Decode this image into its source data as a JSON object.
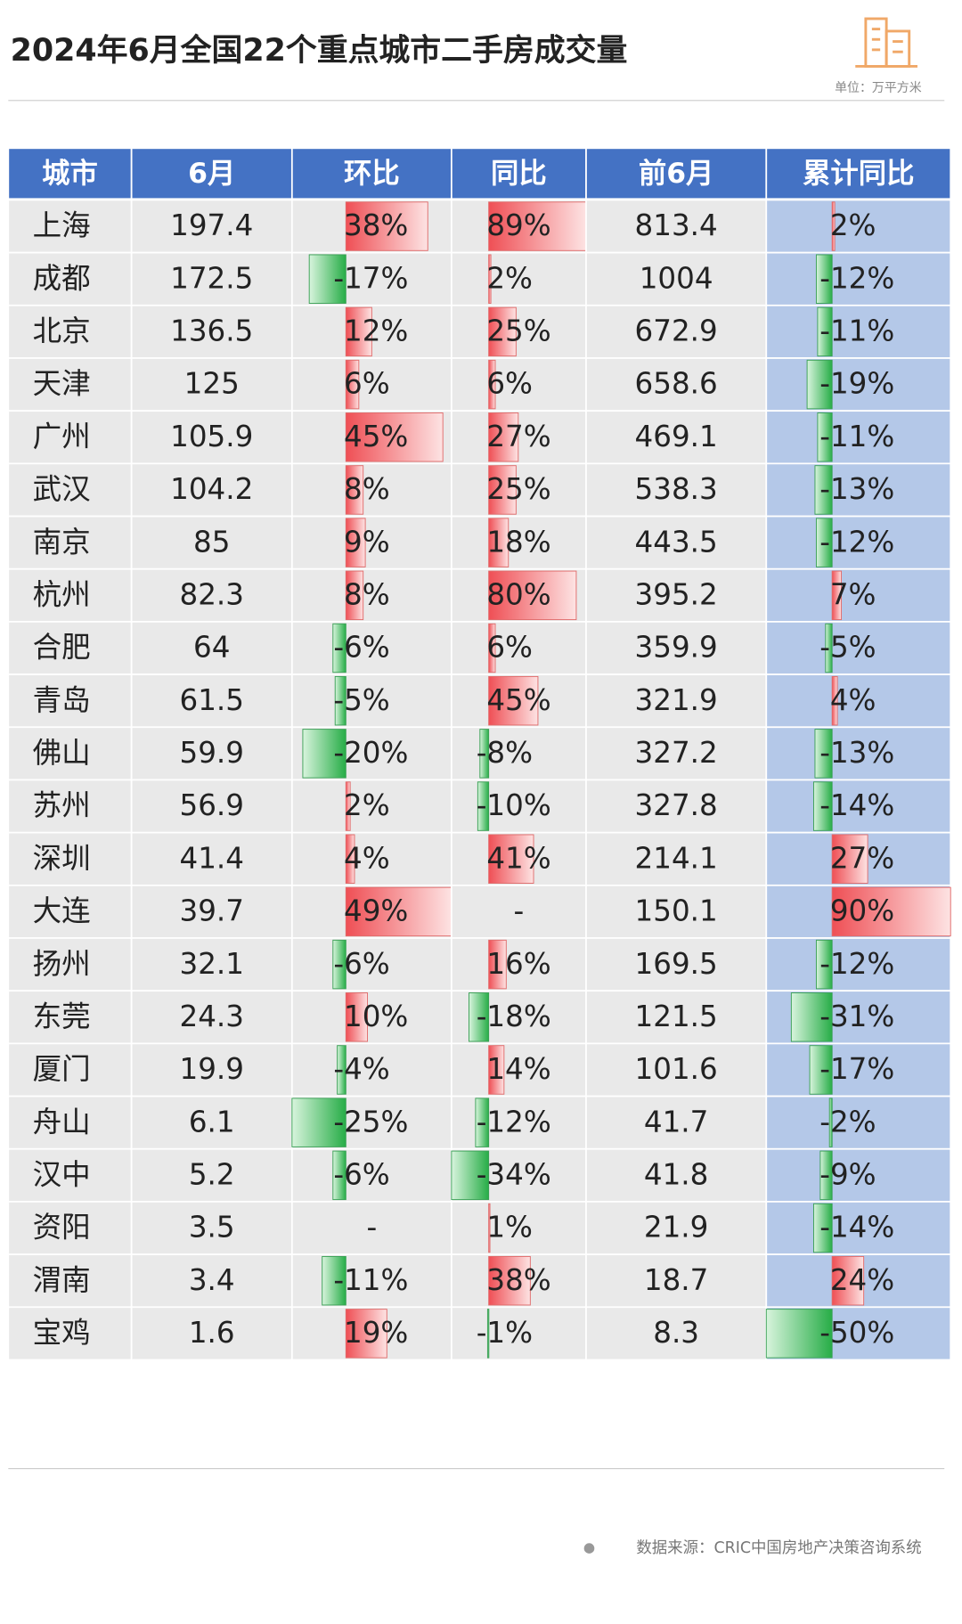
{
  "header": {
    "title": "2024年6月全国22个重点城市二手房成交量",
    "unit": "单位：万平方米"
  },
  "table": {
    "columns": [
      "城市",
      "6月",
      "环比",
      "同比",
      "前6月",
      "累计同比"
    ],
    "rows": [
      [
        "上海",
        197.4,
        {
          "value": 38,
          "label": "38%"
        },
        {
          "value": 89,
          "label": "89%"
        },
        813.4,
        {
          "value": 2,
          "label": "2%"
        }
      ],
      [
        "成都",
        172.5,
        {
          "value": -17,
          "label": "-17%"
        },
        {
          "value": 2,
          "label": "2%"
        },
        1004,
        {
          "value": -12,
          "label": "-12%"
        }
      ],
      [
        "北京",
        136.5,
        {
          "value": 12,
          "label": "12%"
        },
        {
          "value": 25,
          "label": "25%"
        },
        672.9,
        {
          "value": -11,
          "label": "-11%"
        }
      ],
      [
        "天津",
        125,
        {
          "value": 6,
          "label": "6%"
        },
        {
          "value": 6,
          "label": "6%"
        },
        658.6,
        {
          "value": -19,
          "label": "-19%"
        }
      ],
      [
        "广州",
        105.9,
        {
          "value": 45,
          "label": "45%"
        },
        {
          "value": 27,
          "label": "27%"
        },
        469.1,
        {
          "value": -11,
          "label": "-11%"
        }
      ],
      [
        "武汉",
        104.2,
        {
          "value": 8,
          "label": "8%"
        },
        {
          "value": 25,
          "label": "25%"
        },
        538.3,
        {
          "value": -13,
          "label": "-13%"
        }
      ],
      [
        "南京",
        85,
        {
          "value": 9,
          "label": "9%"
        },
        {
          "value": 18,
          "label": "18%"
        },
        443.5,
        {
          "value": -12,
          "label": "-12%"
        }
      ],
      [
        "杭州",
        82.3,
        {
          "value": 8,
          "label": "8%"
        },
        {
          "value": 80,
          "label": "80%"
        },
        395.2,
        {
          "value": 7,
          "label": "7%"
        }
      ],
      [
        "合肥",
        64,
        {
          "value": -6,
          "label": "-6%"
        },
        {
          "value": 6,
          "label": "6%"
        },
        359.9,
        {
          "value": -5,
          "label": "-5%"
        }
      ],
      [
        "青岛",
        61.5,
        {
          "value": -5,
          "label": "-5%"
        },
        {
          "value": 45,
          "label": "45%"
        },
        321.9,
        {
          "value": 4,
          "label": "4%"
        }
      ],
      [
        "佛山",
        59.9,
        {
          "value": -20,
          "label": "-20%"
        },
        {
          "value": -8,
          "label": "-8%"
        },
        327.2,
        {
          "value": -13,
          "label": "-13%"
        }
      ],
      [
        "苏州",
        56.9,
        {
          "value": 2,
          "label": "2%"
        },
        {
          "value": -10,
          "label": "-10%"
        },
        327.8,
        {
          "value": -14,
          "label": "-14%"
        }
      ],
      [
        "深圳",
        41.4,
        {
          "value": 4,
          "label": "4%"
        },
        {
          "value": 41,
          "label": "41%"
        },
        214.1,
        {
          "value": 27,
          "label": "27%"
        }
      ],
      [
        "大连",
        39.7,
        {
          "value": 49,
          "label": "49%"
        },
        {
          "value": null,
          "label": "-"
        },
        150.1,
        {
          "value": 90,
          "label": "90%"
        }
      ],
      [
        "扬州",
        32.1,
        {
          "value": -6,
          "label": "-6%"
        },
        {
          "value": 16,
          "label": "16%"
        },
        169.5,
        {
          "value": -12,
          "label": "-12%"
        }
      ],
      [
        "东莞",
        24.3,
        {
          "value": 10,
          "label": "10%"
        },
        {
          "value": -18,
          "label": "-18%"
        },
        121.5,
        {
          "value": -31,
          "label": "-31%"
        }
      ],
      [
        "厦门",
        19.9,
        {
          "value": -4,
          "label": "-4%"
        },
        {
          "value": 14,
          "label": "14%"
        },
        101.6,
        {
          "value": -17,
          "label": "-17%"
        }
      ],
      [
        "舟山",
        6.1,
        {
          "value": -25,
          "label": "-25%"
        },
        {
          "value": -12,
          "label": "-12%"
        },
        41.7,
        {
          "value": -2,
          "label": "-2%"
        }
      ],
      [
        "汉中",
        5.2,
        {
          "value": -6,
          "label": "-6%"
        },
        {
          "value": -34,
          "label": "-34%"
        },
        41.8,
        {
          "value": -9,
          "label": "-9%"
        }
      ],
      [
        "资阳",
        3.5,
        {
          "value": null,
          "label": "-"
        },
        {
          "value": 1,
          "label": "1%"
        },
        21.9,
        {
          "value": -14,
          "label": "-14%"
        }
      ],
      [
        "渭南",
        3.4,
        {
          "value": -11,
          "label": "-11%"
        },
        {
          "value": 38,
          "label": "38%"
        },
        18.7,
        {
          "value": 24,
          "label": "24%"
        }
      ],
      [
        "宝鸡",
        1.6,
        {
          "value": 19,
          "label": "19%"
        },
        {
          "value": -1,
          "label": "-1%"
        },
        8.3,
        {
          "value": -50,
          "label": "-50%"
        }
      ]
    ]
  },
  "footer": {
    "source": "数据来源：CRIC中国房地产决策咨询系统"
  }
}
